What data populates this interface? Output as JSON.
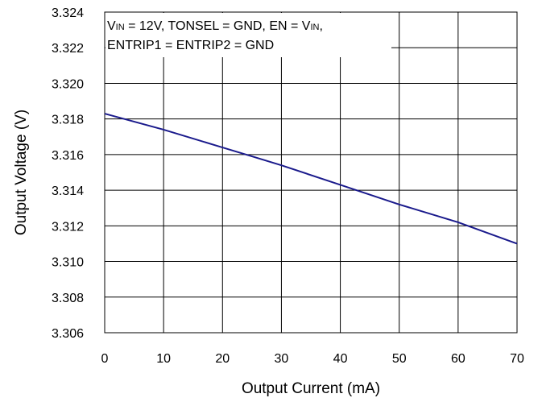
{
  "chart_data": {
    "type": "line",
    "xlabel": "Output Current (mA)",
    "ylabel": "Output Voltage (V)",
    "xlim": [
      0,
      70
    ],
    "ylim": [
      3.306,
      3.324
    ],
    "x_ticks": [
      "0",
      "10",
      "20",
      "30",
      "40",
      "50",
      "60",
      "70"
    ],
    "y_ticks": [
      "3.306",
      "3.308",
      "3.310",
      "3.312",
      "3.314",
      "3.316",
      "3.318",
      "3.320",
      "3.322",
      "3.324"
    ],
    "grid": true,
    "annotation": {
      "line1": {
        "v": "V",
        "in_sub": "IN",
        "mid": " = 12V, TONSEL = GND, EN = V",
        "in_sub2": "IN",
        "end": ","
      },
      "line2": "ENTRIP1 = ENTRIP2 = GND"
    },
    "series": [
      {
        "color": "#1a1a8c",
        "x": [
          0,
          10,
          20,
          25,
          30,
          40,
          50,
          60,
          70
        ],
        "y": [
          3.3183,
          3.3174,
          3.3164,
          3.3159,
          3.3154,
          3.3143,
          3.3132,
          3.3122,
          3.311
        ]
      }
    ]
  }
}
